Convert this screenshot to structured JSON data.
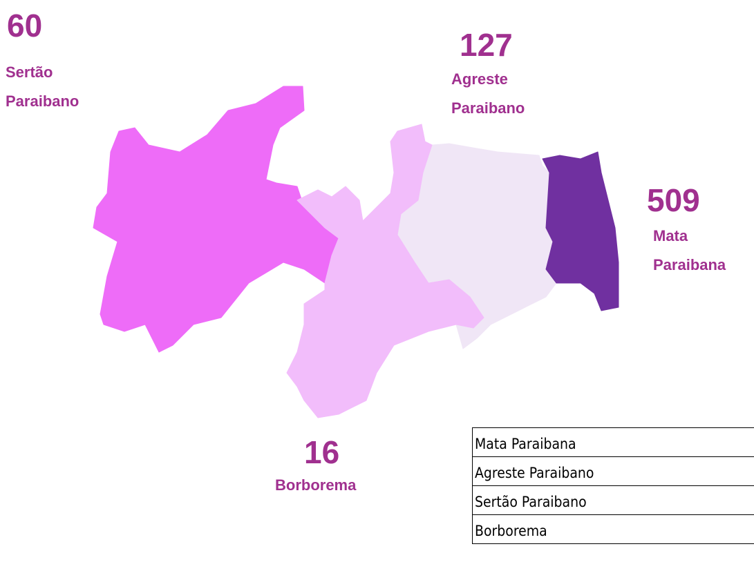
{
  "map": {
    "regions": [
      {
        "name": "Sertão Paraibano",
        "value": 60,
        "color": "#ee6cf8"
      },
      {
        "name": "Agreste Paraibano",
        "value": 127,
        "color": "#f0e6f6"
      },
      {
        "name": "Mata Paraibana",
        "value": 509,
        "color": "#7030a0"
      },
      {
        "name": "Borborema",
        "value": 16,
        "color": "#f2bdfb"
      }
    ],
    "label_color": "#a0308f"
  },
  "table": {
    "rows": [
      "Mata Paraibana",
      "Agreste Paraibano",
      "Sertão Paraibano",
      "Borborema"
    ]
  }
}
